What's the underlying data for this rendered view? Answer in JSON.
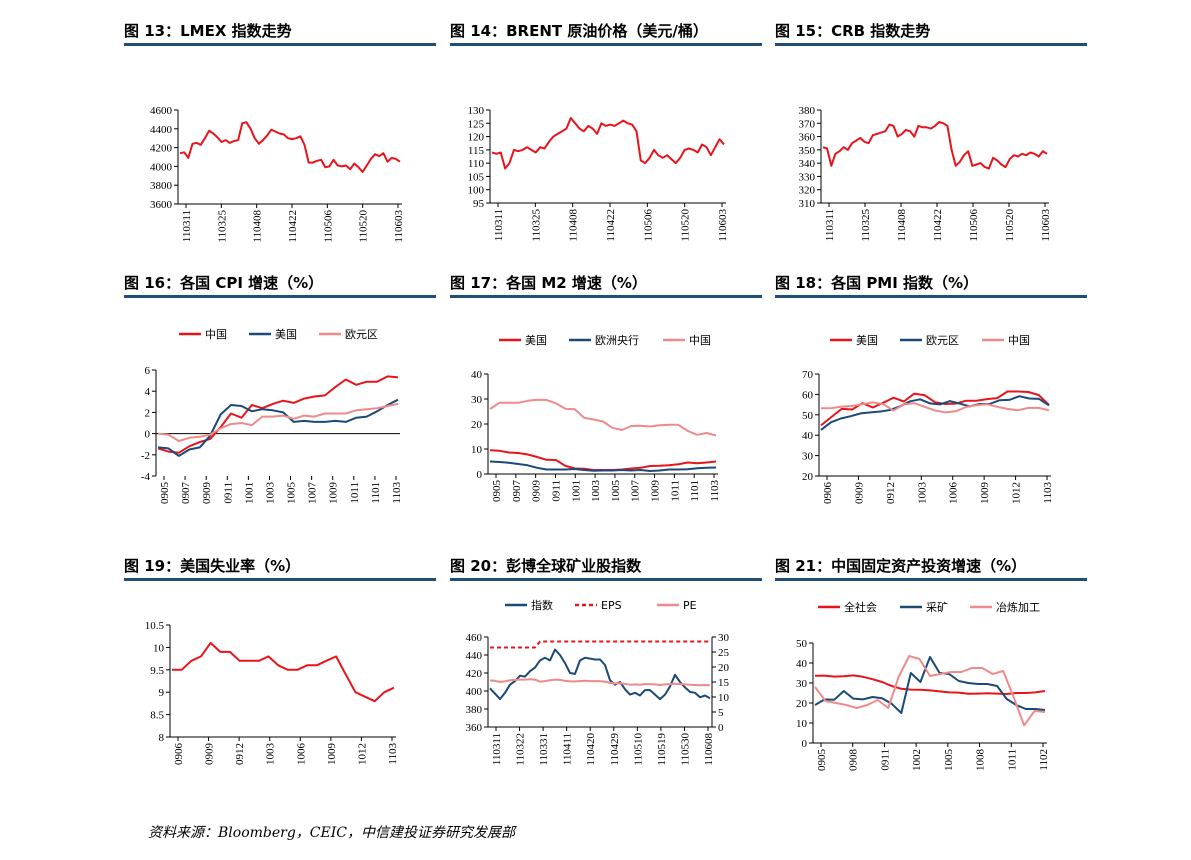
{
  "footer": {
    "source": "资料来源：Bloomberg，CEIC，中信建投证券研究发展部"
  },
  "colors": {
    "red": "#e8141b",
    "navy": "#1a4a78",
    "pink": "#f08a8a",
    "rule": "#1f4e79"
  },
  "chart_data": [
    {
      "id": "fig13",
      "title": "图 13：LMEX 指数走势",
      "type": "line",
      "xlabels": [
        "110311",
        "110325",
        "110408",
        "110422",
        "110506",
        "110520",
        "110603"
      ],
      "ylim": [
        3600,
        4600
      ],
      "yticks": [
        3600,
        3800,
        4000,
        4200,
        4400,
        4600
      ],
      "legend": [],
      "series": [
        {
          "color": "red",
          "dash": false,
          "values": [
            4140,
            4150,
            4090,
            4240,
            4250,
            4230,
            4300,
            4380,
            4350,
            4310,
            4260,
            4280,
            4250,
            4270,
            4280,
            4460,
            4470,
            4400,
            4300,
            4240,
            4280,
            4330,
            4390,
            4370,
            4350,
            4340,
            4300,
            4290,
            4300,
            4320,
            4230,
            4040,
            4040,
            4060,
            4070,
            3990,
            4000,
            4070,
            4010,
            4000,
            4010,
            3970,
            4030,
            3990,
            3940,
            4010,
            4080,
            4130,
            4110,
            4140,
            4050,
            4090,
            4080,
            4050
          ]
        }
      ]
    },
    {
      "id": "fig14",
      "title": "图 14：BRENT 原油价格（美元/桶）",
      "type": "line",
      "xlabels": [
        "110311",
        "110325",
        "110408",
        "110422",
        "110506",
        "110520",
        "110603"
      ],
      "ylim": [
        95,
        130
      ],
      "yticks": [
        95,
        100,
        105,
        110,
        115,
        120,
        125,
        130
      ],
      "legend": [],
      "series": [
        {
          "color": "red",
          "dash": false,
          "values": [
            114,
            113.5,
            114,
            108,
            110,
            115,
            114.5,
            115,
            116,
            115,
            114,
            116,
            115.5,
            118,
            120,
            121,
            122,
            123,
            127,
            125,
            123,
            122,
            124,
            123,
            121,
            125,
            124,
            124.5,
            124,
            125,
            126,
            125,
            124.5,
            122,
            111,
            110,
            112,
            115,
            113,
            112,
            113,
            111.5,
            110,
            112,
            115,
            115.5,
            115,
            114,
            117,
            116,
            113,
            116,
            119,
            117
          ]
        }
      ]
    },
    {
      "id": "fig15",
      "title": "图 15：CRB 指数走势",
      "type": "line",
      "xlabels": [
        "110311",
        "110325",
        "110408",
        "110422",
        "110506",
        "110520",
        "110603"
      ],
      "ylim": [
        310,
        380
      ],
      "yticks": [
        310,
        320,
        330,
        340,
        350,
        360,
        370,
        380
      ],
      "legend": [],
      "series": [
        {
          "color": "red",
          "dash": false,
          "values": [
            352,
            351,
            338,
            347,
            349,
            352,
            350,
            355,
            357,
            359,
            356,
            355,
            361,
            362,
            363,
            364,
            369,
            368,
            360,
            362,
            365,
            364,
            360,
            368,
            367,
            367,
            366,
            368,
            371,
            370,
            368,
            350,
            338,
            341,
            346,
            349,
            338,
            339,
            340,
            337,
            336,
            344,
            342,
            339,
            337,
            343,
            346,
            345,
            347,
            346,
            348,
            347,
            345,
            349,
            347
          ]
        }
      ]
    },
    {
      "id": "fig16",
      "title": "图 16：各国 CPI 增速（%）",
      "type": "line",
      "xlabels": [
        "0905",
        "0907",
        "0909",
        "0911",
        "1001",
        "1003",
        "1005",
        "1007",
        "1009",
        "1011",
        "1101",
        "1103"
      ],
      "ylim": [
        -4,
        6
      ],
      "yticks": [
        -4,
        -2,
        0,
        2,
        4,
        6
      ],
      "legend": [
        {
          "name": "中国",
          "color": "red",
          "dash": false
        },
        {
          "name": "美国",
          "color": "navy",
          "dash": false
        },
        {
          "name": "欧元区",
          "color": "pink",
          "dash": false
        }
      ],
      "series": [
        {
          "name": "中国",
          "color": "red",
          "dash": false,
          "values": [
            -1.4,
            -1.7,
            -1.8,
            -1.2,
            -0.8,
            -0.5,
            0.6,
            1.9,
            1.5,
            2.7,
            2.4,
            2.8,
            3.1,
            2.9,
            3.3,
            3.5,
            3.6,
            4.4,
            5.1,
            4.6,
            4.9,
            4.9,
            5.4,
            5.3
          ]
        },
        {
          "name": "美国",
          "color": "navy",
          "dash": false,
          "values": [
            -1.3,
            -1.4,
            -2.1,
            -1.5,
            -1.3,
            -0.2,
            1.8,
            2.7,
            2.6,
            2.1,
            2.3,
            2.2,
            2.0,
            1.1,
            1.2,
            1.1,
            1.1,
            1.2,
            1.1,
            1.5,
            1.6,
            2.1,
            2.7,
            3.2
          ]
        },
        {
          "name": "欧元区",
          "color": "pink",
          "dash": false,
          "values": [
            0,
            -0.1,
            -0.7,
            -0.4,
            -0.3,
            -0.1,
            0.5,
            0.9,
            1.0,
            0.8,
            1.6,
            1.6,
            1.7,
            1.4,
            1.7,
            1.6,
            1.9,
            1.9,
            1.9,
            2.2,
            2.3,
            2.4,
            2.6,
            2.8
          ]
        }
      ]
    },
    {
      "id": "fig17",
      "title": "图 17：各国 M2 增速（%）",
      "type": "line",
      "xlabels": [
        "0905",
        "0907",
        "0909",
        "0911",
        "1001",
        "1003",
        "1005",
        "1007",
        "1009",
        "1011",
        "1101",
        "1103"
      ],
      "ylim": [
        0,
        40
      ],
      "yticks": [
        0,
        10,
        20,
        30,
        40
      ],
      "legend": [
        {
          "name": "美国",
          "color": "red",
          "dash": false
        },
        {
          "name": "欧洲央行",
          "color": "navy",
          "dash": false
        },
        {
          "name": "中国",
          "color": "pink",
          "dash": false
        }
      ],
      "series": [
        {
          "name": "美国",
          "color": "red",
          "dash": false,
          "values": [
            9.5,
            9.3,
            8.6,
            8.4,
            7.8,
            6.8,
            5.7,
            5.6,
            3.3,
            2.2,
            2.1,
            1.6,
            1.6,
            1.6,
            1.8,
            2.2,
            2.5,
            3.2,
            3.3,
            3.5,
            3.9,
            4.6,
            4.3,
            4.6,
            5.0
          ]
        },
        {
          "name": "欧洲央行",
          "color": "navy",
          "dash": false,
          "values": [
            5.0,
            4.8,
            4.5,
            4.0,
            3.5,
            2.5,
            1.8,
            1.8,
            1.8,
            2.0,
            1.6,
            1.3,
            1.4,
            1.4,
            1.6,
            1.4,
            1.6,
            1.2,
            1.4,
            1.8,
            1.8,
            1.9,
            2.3,
            2.5,
            2.6
          ]
        },
        {
          "name": "中国",
          "color": "pink",
          "dash": false,
          "values": [
            26,
            28.5,
            28.5,
            28.5,
            29.3,
            29.7,
            29.6,
            28.3,
            26.1,
            25.9,
            22.5,
            21.8,
            21.0,
            18.5,
            17.6,
            19.2,
            19.3,
            19.0,
            19.5,
            19.7,
            19.7,
            17.2,
            15.7,
            16.4,
            15.4
          ]
        }
      ]
    },
    {
      "id": "fig18",
      "title": "图 18：各国 PMI 指数（%）",
      "type": "line",
      "xlabels": [
        "0906",
        "0909",
        "0912",
        "1003",
        "1006",
        "1009",
        "1012",
        "1103"
      ],
      "ylim": [
        20,
        70
      ],
      "yticks": [
        20,
        30,
        40,
        50,
        60,
        70
      ],
      "legend": [
        {
          "name": "美国",
          "color": "red",
          "dash": false
        },
        {
          "name": "欧元区",
          "color": "navy",
          "dash": false
        },
        {
          "name": "中国",
          "color": "pink",
          "dash": false
        }
      ],
      "series": [
        {
          "name": "美国",
          "color": "red",
          "dash": false,
          "values": [
            44.8,
            48.9,
            52.9,
            52.6,
            55.7,
            53.6,
            55.9,
            58.4,
            56.5,
            60.4,
            59.6,
            56.2,
            55.3,
            55.5,
            56.9,
            56.9,
            57.7,
            58.2,
            61.4,
            61.4,
            61.2,
            59.7,
            54.9
          ]
        },
        {
          "name": "欧元区",
          "color": "navy",
          "dash": false,
          "values": [
            42.6,
            46.3,
            48.2,
            49.3,
            50.7,
            51.2,
            51.6,
            52.4,
            54.2,
            56.6,
            57.6,
            55.6,
            55.1,
            56.7,
            55.5,
            54.1,
            55.3,
            55.3,
            57.1,
            57.3,
            59.1,
            58.0,
            57.8,
            54.6
          ]
        },
        {
          "name": "中国",
          "color": "pink",
          "dash": false,
          "values": [
            53.2,
            53.3,
            54.0,
            54.3,
            55.2,
            56.1,
            55.2,
            52.1,
            55.1,
            55.7,
            53.9,
            52.1,
            51.2,
            51.7,
            53.8,
            54.7,
            55.2,
            53.9,
            52.9,
            52.2,
            53.4,
            53.4,
            52.2
          ]
        }
      ]
    },
    {
      "id": "fig19",
      "title": "图 19：美国失业率（%）",
      "type": "line",
      "xlabels": [
        "0906",
        "0909",
        "0912",
        "1003",
        "1006",
        "1009",
        "1012",
        "1103"
      ],
      "ylim": [
        8,
        10.5
      ],
      "yticks": [
        8,
        8.5,
        9,
        9.5,
        10,
        10.5
      ],
      "legend": [],
      "series": [
        {
          "color": "red",
          "dash": false,
          "values": [
            9.5,
            9.5,
            9.7,
            9.8,
            10.1,
            9.9,
            9.9,
            9.7,
            9.7,
            9.7,
            9.8,
            9.6,
            9.5,
            9.5,
            9.6,
            9.6,
            9.7,
            9.8,
            9.4,
            9.0,
            8.9,
            8.8,
            9.0,
            9.1
          ]
        }
      ]
    },
    {
      "id": "fig20",
      "title": "图 20：彭博全球矿业股指数",
      "type": "line",
      "xlabels": [
        "110311",
        "110322",
        "110331",
        "110411",
        "110420",
        "110429",
        "110510",
        "110519",
        "110530",
        "110608"
      ],
      "ylim": [
        360,
        460
      ],
      "yticks": [
        360,
        380,
        400,
        420,
        440,
        460
      ],
      "y2lim": [
        0,
        30
      ],
      "y2ticks": [
        0,
        5,
        10,
        15,
        20,
        25,
        30
      ],
      "legend": [
        {
          "name": "指数",
          "color": "navy",
          "dash": false
        },
        {
          "name": "EPS",
          "color": "red",
          "dash": true
        },
        {
          "name": "PE",
          "color": "pink",
          "dash": false
        }
      ],
      "series": [
        {
          "name": "指数",
          "color": "navy",
          "dash": false,
          "axis": "left",
          "values": [
            403,
            397,
            391,
            398,
            407,
            411,
            417,
            416,
            422,
            426,
            434,
            437,
            434,
            446,
            440,
            431,
            420,
            419,
            434,
            437,
            436,
            435,
            435,
            429,
            412,
            407,
            410,
            402,
            396,
            398,
            395,
            401,
            401,
            396,
            391,
            396,
            405,
            418,
            410,
            404,
            399,
            398,
            393,
            395,
            392
          ]
        },
        {
          "name": "EPS",
          "color": "red",
          "dash": true,
          "axis": "right",
          "values": [
            26.5,
            26.5,
            26.5,
            26.5,
            26.5,
            26.5,
            26.5,
            26.5,
            26.5,
            26.5,
            28.5,
            28.5,
            28.5,
            28.5,
            28.5,
            28.5,
            28.5,
            28.5,
            28.5,
            28.5,
            28.5,
            28.5,
            28.5,
            28.5,
            28.5,
            28.5,
            28.5,
            28.5,
            28.5,
            28.5,
            28.5,
            28.5,
            28.5,
            28.5,
            28.5,
            28.5,
            28.5,
            28.5,
            28.5,
            28.5,
            28.5,
            28.5,
            28.5,
            28.5,
            28.5
          ]
        },
        {
          "name": "PE",
          "color": "pink",
          "dash": false,
          "axis": "right",
          "values": [
            15.5,
            15.4,
            15.0,
            15.2,
            15.6,
            15.7,
            15.8,
            15.8,
            15.9,
            15.8,
            15.1,
            15.3,
            15.6,
            15.8,
            15.7,
            15.4,
            15.2,
            15.2,
            15.3,
            15.4,
            15.3,
            15.3,
            15.3,
            15.1,
            14.7,
            14.5,
            14.6,
            14.4,
            14.1,
            14.2,
            14.1,
            14.3,
            14.3,
            14.2,
            14.0,
            14.2,
            14.3,
            14.4,
            14.3,
            14.2,
            14.1,
            14.0,
            13.9,
            14.0,
            13.9
          ]
        }
      ]
    },
    {
      "id": "fig21",
      "title": "图 21：中国固定资产投资增速（%）",
      "type": "line",
      "xlabels": [
        "0905",
        "0908",
        "0911",
        "1002",
        "1005",
        "1008",
        "1011",
        "1102"
      ],
      "ylim": [
        0,
        50
      ],
      "yticks": [
        0,
        10,
        20,
        30,
        40,
        50
      ],
      "legend": [
        {
          "name": "全社会",
          "color": "red",
          "dash": false
        },
        {
          "name": "采矿",
          "color": "navy",
          "dash": false
        },
        {
          "name": "冶炼加工",
          "color": "pink",
          "dash": false
        }
      ],
      "series": [
        {
          "name": "全社会",
          "color": "red",
          "dash": false,
          "values": [
            33.6,
            33.7,
            33.2,
            33.4,
            33.8,
            33.1,
            31.9,
            30.5,
            28.5,
            27.1,
            26.7,
            26.6,
            26.3,
            25.8,
            25.3,
            25.2,
            24.6,
            24.7,
            24.9,
            24.7,
            24.5,
            25.0,
            25.0,
            25.3,
            26.0
          ]
        },
        {
          "name": "采矿",
          "color": "navy",
          "dash": false,
          "values": [
            19.0,
            21.8,
            21.6,
            26.0,
            22.2,
            21.8,
            23.0,
            22.4,
            19.6,
            15.0,
            35.0,
            30.5,
            43.0,
            35.0,
            34.5,
            31.0,
            30.0,
            29.5,
            29.5,
            28.5,
            22.0,
            19.0,
            17.0,
            17.0,
            16.5
          ]
        },
        {
          "name": "冶炼加工",
          "color": "pink",
          "dash": false,
          "values": [
            28.0,
            21.0,
            20.0,
            19.0,
            17.5,
            19.0,
            21.5,
            17.5,
            33.0,
            43.5,
            42.0,
            33.5,
            34.5,
            35.5,
            35.5,
            37.5,
            37.5,
            34.5,
            36.0,
            23.0,
            8.8,
            16.0,
            15.5
          ]
        }
      ]
    }
  ]
}
